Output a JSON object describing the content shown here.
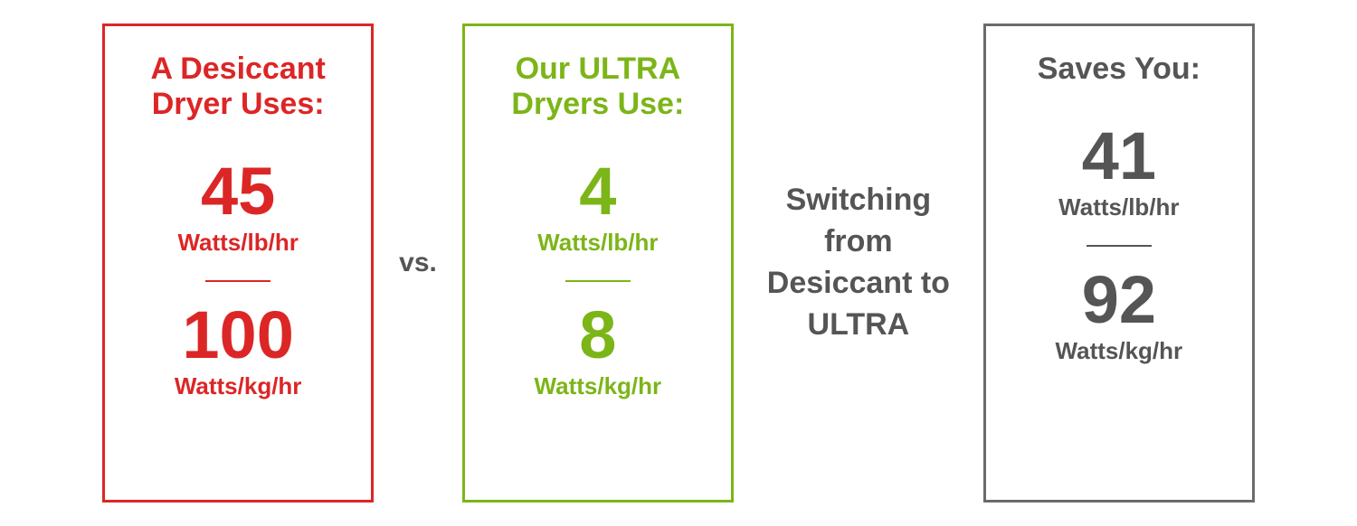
{
  "colors": {
    "red": "#dc2626",
    "green": "#7cb518",
    "gray_border": "#6b6b6b",
    "gray_text": "#555555",
    "background": "#ffffff"
  },
  "panel1": {
    "title": "A Desiccant Dryer Uses:",
    "stat1_value": "45",
    "stat1_unit": "Watts/lb/hr",
    "stat2_value": "100",
    "stat2_unit": "Watts/kg/hr"
  },
  "connector1": "vs.",
  "panel2": {
    "title": "Our ULTRA Dryers Use:",
    "stat1_value": "4",
    "stat1_unit": "Watts/lb/hr",
    "stat2_value": "8",
    "stat2_unit": "Watts/kg/hr"
  },
  "connector2": "Switching from Desiccant to ULTRA",
  "panel3": {
    "title": "Saves You:",
    "stat1_value": "41",
    "stat1_unit": "Watts/lb/hr",
    "stat2_value": "92",
    "stat2_unit": "Watts/kg/hr"
  },
  "style": {
    "panel_border_width": 3,
    "title_fontsize": 34,
    "value_fontsize": 74,
    "unit_fontsize": 26,
    "connector_fontsize": 30,
    "connector_wide_fontsize": 34,
    "divider_width": 72
  }
}
